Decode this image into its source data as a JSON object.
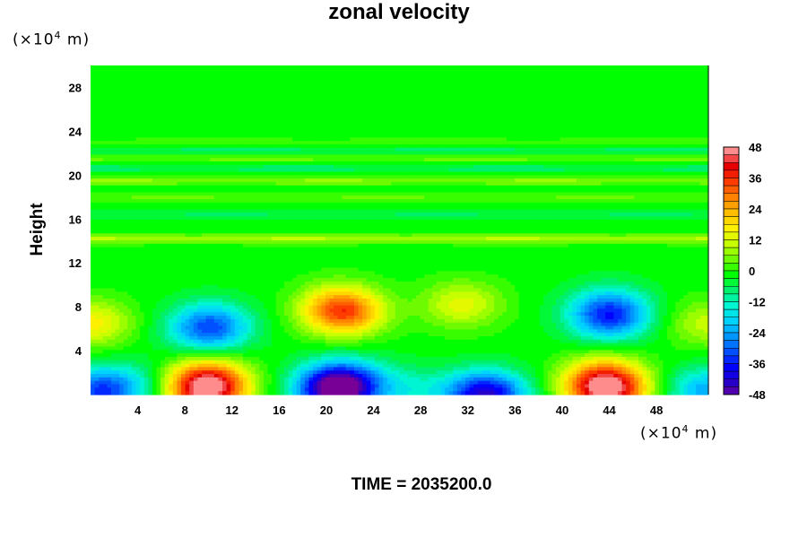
{
  "chart_data": {
    "type": "heatmap",
    "title": "zonal velocity",
    "xlabel": "",
    "ylabel": "Height",
    "x_unit": {
      "prefix": "(×10",
      "exponent": "4",
      "suffix": " m)"
    },
    "y_unit": {
      "prefix": "(×10",
      "exponent": "4",
      "suffix": " m)"
    },
    "xlim": [
      0,
      52.4
    ],
    "ylim": [
      0,
      30
    ],
    "x_ticks": [
      4,
      8,
      12,
      16,
      20,
      24,
      28,
      32,
      36,
      40,
      44,
      48
    ],
    "y_ticks": [
      4,
      8,
      12,
      16,
      20,
      24,
      28
    ],
    "colorbar": {
      "min": -48,
      "max": 48,
      "step": 3,
      "ticks": [
        48,
        36,
        24,
        12,
        0,
        -12,
        -24,
        -36,
        -48
      ]
    },
    "features": [
      {
        "x": 9.8,
        "y": 0.3,
        "value": 40
      },
      {
        "x": 10.0,
        "y": 1.6,
        "value": 20
      },
      {
        "x": 21.5,
        "y": 7.4,
        "value": 27
      },
      {
        "x": 21.0,
        "y": 8.2,
        "value": 12
      },
      {
        "x": 43.8,
        "y": 0.3,
        "value": 40
      },
      {
        "x": 43.5,
        "y": 1.6,
        "value": 20
      },
      {
        "x": 31.5,
        "y": 8.2,
        "value": 15
      },
      {
        "x": 0.0,
        "y": 6.5,
        "value": 18
      },
      {
        "x": 52.4,
        "y": 6.5,
        "value": 12
      },
      {
        "x": 10.2,
        "y": 6.5,
        "value": -14
      },
      {
        "x": 10.0,
        "y": 5.8,
        "value": -18
      },
      {
        "x": 44.0,
        "y": 7.0,
        "value": -25
      },
      {
        "x": 44.0,
        "y": 8.0,
        "value": -12
      },
      {
        "x": 20.8,
        "y": 0.3,
        "value": -42
      },
      {
        "x": 21.5,
        "y": 1.4,
        "value": -20
      },
      {
        "x": 33.5,
        "y": 0.0,
        "value": -42
      },
      {
        "x": 0.7,
        "y": 0.3,
        "value": -30
      },
      {
        "x": 52.3,
        "y": 0.3,
        "value": -22
      },
      {
        "x": 27.0,
        "y": 0.5,
        "value": -10
      },
      {
        "x": 4.0,
        "y": 1.0,
        "value": -8
      }
    ],
    "bands": [
      {
        "y": 14.2,
        "value": 11
      },
      {
        "y": 16.4,
        "value": -5
      },
      {
        "y": 18.0,
        "value": 5
      },
      {
        "y": 19.5,
        "value": 8
      },
      {
        "y": 20.6,
        "value": -6
      },
      {
        "y": 21.6,
        "value": 7
      },
      {
        "y": 22.2,
        "value": -7
      },
      {
        "y": 23.0,
        "value": 3
      }
    ]
  },
  "footer": {
    "time_label": "TIME = 2035200.0"
  }
}
